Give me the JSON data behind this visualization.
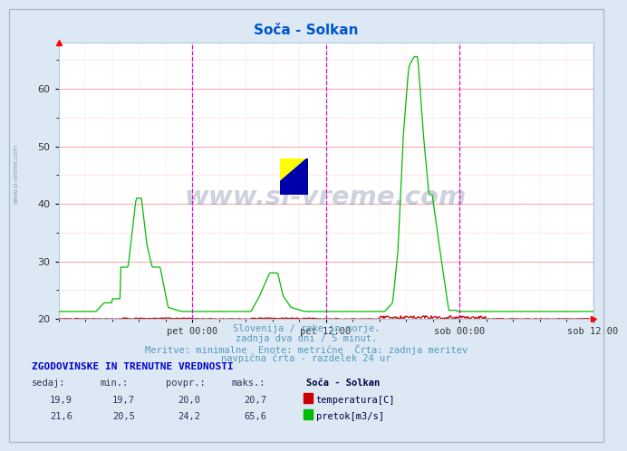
{
  "title": "Soča - Solkan",
  "title_color": "#0055cc",
  "bg_color": "#dce9f5",
  "plot_bg_color": "#ffffff",
  "grid_color_major": "#ffaaaa",
  "grid_color_minor": "#ffdddd",
  "vline_color": "#dd00dd",
  "temp_color": "#cc0000",
  "flow_color": "#00bb00",
  "tick_labels": [
    "pet 00:00",
    "pet 12:00",
    "sob 00:00",
    "sob 12:00"
  ],
  "yticks": [
    20,
    30,
    40,
    50,
    60
  ],
  "annotation_color": "#5599bb",
  "annotation_texts": [
    "Slovenija / reke in morje.",
    "zadnja dva dni / 5 minut.",
    "Meritve: minimalne  Enote: metrične  Črta: zadnja meritev",
    "navpična črta - razdelek 24 ur"
  ],
  "table_header": "ZGODOVINSKE IN TRENUTNE VREDNOSTI",
  "table_header_color": "#0000cc",
  "col_headers": [
    "sedaj:",
    "min.:",
    "povpr.:",
    "maks.:"
  ],
  "station_label": "Soča - Solkan",
  "row1_vals": [
    "19,9",
    "19,7",
    "20,0",
    "20,7"
  ],
  "row1_label": "temperatura[C]",
  "row1_color": "#cc0000",
  "row2_vals": [
    "21,6",
    "20,5",
    "24,2",
    "65,6"
  ],
  "row2_label": "pretok[m3/s]",
  "row2_color": "#00bb00",
  "watermark_text": "www.si-vreme.com",
  "watermark_color": "#1a3a6e",
  "side_text": "www.si-vreme.com",
  "logo_colors": {
    "yellow": "#ffff00",
    "cyan": "#00ccff",
    "blue": "#0000aa"
  }
}
